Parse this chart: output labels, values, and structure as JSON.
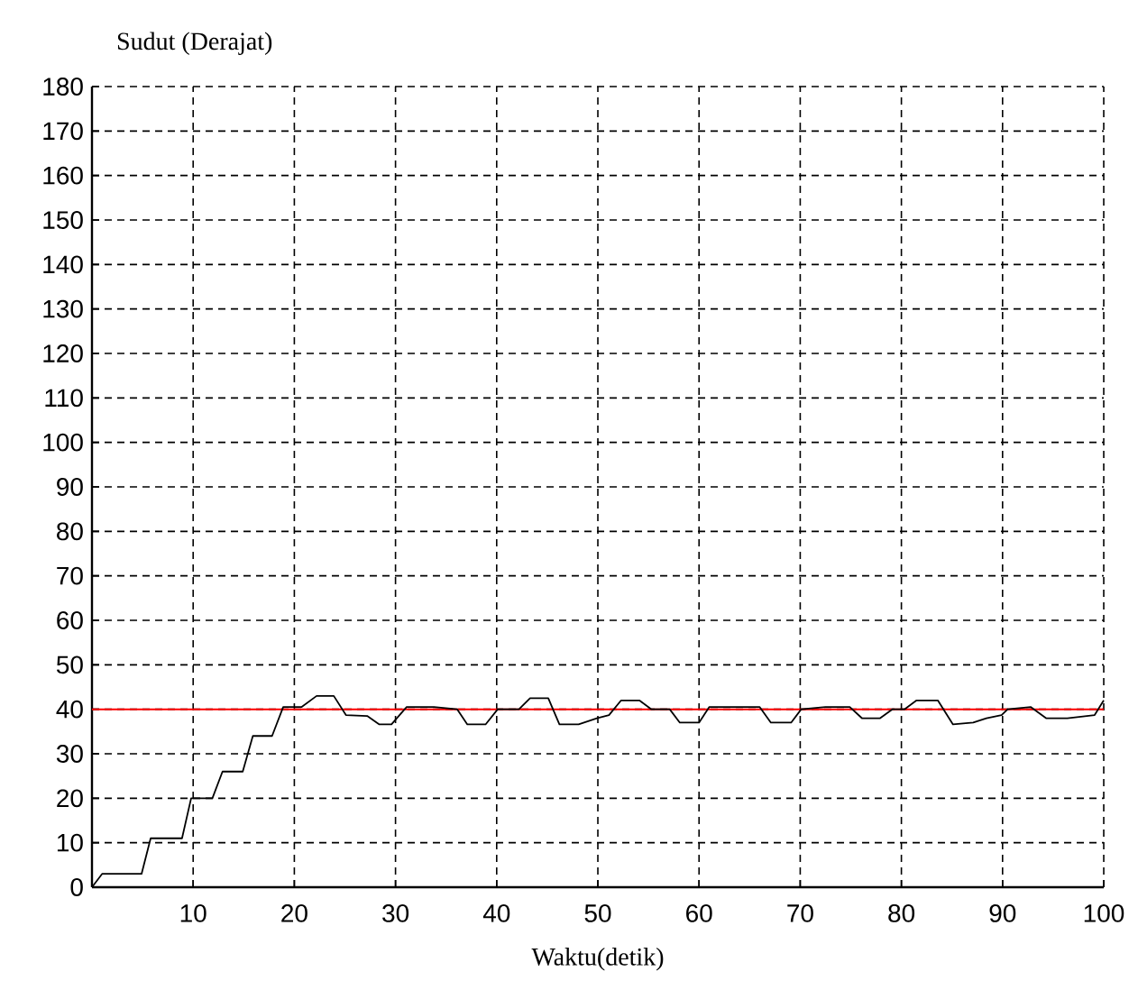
{
  "chart_data": {
    "type": "line",
    "xlabel": "Waktu(detik)",
    "ylabel": "Sudut (Derajat)",
    "xlim": [
      0,
      100
    ],
    "ylim": [
      0,
      180
    ],
    "xticks": [
      10,
      20,
      30,
      40,
      50,
      60,
      70,
      80,
      90,
      100
    ],
    "yticks": [
      0,
      10,
      20,
      30,
      40,
      50,
      60,
      70,
      80,
      90,
      100,
      110,
      120,
      130,
      140,
      150,
      160,
      170,
      180
    ],
    "grid": true,
    "line_style": "solid",
    "marker": "none",
    "ref_lines": [
      {
        "axis": "y",
        "value": 40,
        "color": "#ff0000"
      }
    ],
    "series": [
      {
        "color": "#000000",
        "x": [
          0,
          1.0,
          4.9,
          5.8,
          8.9,
          9.8,
          11.9,
          12.9,
          14.9,
          15.9,
          17.8,
          18.9,
          20.7,
          22.2,
          23.9,
          25.1,
          27.2,
          28.4,
          29.6,
          31.1,
          33.8,
          36.1,
          37.1,
          38.9,
          40.1,
          42.2,
          43.3,
          45.1,
          46.2,
          48.1,
          49.9,
          51.1,
          52.3,
          54.1,
          55.3,
          57.1,
          58.1,
          60.0,
          61.0,
          66.0,
          67.1,
          69.1,
          70.1,
          72.5,
          74.9,
          76.1,
          77.9,
          79.1,
          80.3,
          81.5,
          83.6,
          85.1,
          87.1,
          88.4,
          89.9,
          90.5,
          92.8,
          94.3,
          96.4,
          99.1,
          100
        ],
        "values": [
          0,
          3,
          3,
          11,
          11,
          20,
          20,
          26,
          26,
          34,
          34,
          40.5,
          40.5,
          43,
          43,
          38.7,
          38.5,
          36.6,
          36.6,
          40.5,
          40.5,
          40,
          36.6,
          36.6,
          40,
          40,
          42.5,
          42.5,
          36.6,
          36.6,
          38,
          38.7,
          42,
          42,
          40,
          40,
          37,
          37,
          40.5,
          40.5,
          37,
          37,
          40,
          40.5,
          40.5,
          38,
          38,
          40,
          40,
          42,
          42,
          36.6,
          37,
          38,
          38.7,
          40,
          40.5,
          38,
          38,
          38.7,
          42
        ]
      }
    ]
  }
}
